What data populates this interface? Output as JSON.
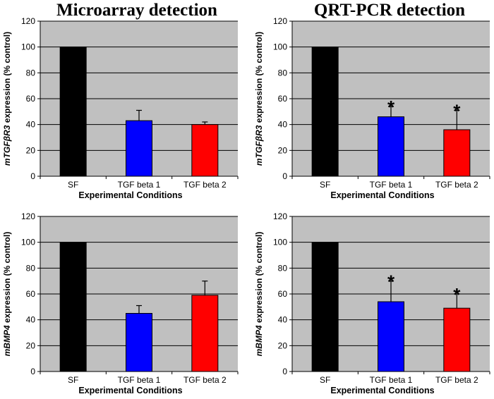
{
  "titles": [
    "Microarray detection",
    "QRT-PCR detection"
  ],
  "chart_data": [
    {
      "type": "bar",
      "categories": [
        "SF",
        "TGF beta 1",
        "TGF beta 2"
      ],
      "values": [
        100,
        43,
        40
      ],
      "errors": [
        0,
        8,
        2
      ],
      "significant": [
        false,
        false,
        false
      ],
      "colors": [
        "#000000",
        "#0000ff",
        "#ff0000"
      ],
      "xlabel": "Experimental Conditions",
      "ylabel_gene": "mTGFβR3",
      "ylabel_rest": " expression (% control)",
      "ylim": [
        0,
        120
      ],
      "yticks": [
        0,
        20,
        40,
        60,
        80,
        100,
        120
      ],
      "significance_marker": "*"
    },
    {
      "type": "bar",
      "categories": [
        "SF",
        "TGF beta 1",
        "TGF beta 2"
      ],
      "values": [
        100,
        46,
        36
      ],
      "errors": [
        0,
        8,
        15
      ],
      "significant": [
        false,
        true,
        true
      ],
      "colors": [
        "#000000",
        "#0000ff",
        "#ff0000"
      ],
      "xlabel": "Experimental Conditions",
      "ylabel_gene": "mTGFβR3",
      "ylabel_rest": " expression (% control)",
      "ylim": [
        0,
        120
      ],
      "yticks": [
        0,
        20,
        40,
        60,
        80,
        100,
        120
      ],
      "significance_marker": "*"
    },
    {
      "type": "bar",
      "categories": [
        "SF",
        "TGF beta 1",
        "TGF beta 2"
      ],
      "values": [
        100,
        45,
        59
      ],
      "errors": [
        0,
        6,
        11
      ],
      "significant": [
        false,
        false,
        false
      ],
      "colors": [
        "#000000",
        "#0000ff",
        "#ff0000"
      ],
      "xlabel": "Experimental Conditions",
      "ylabel_gene": "mBMP4",
      "ylabel_rest": " expression (% control)",
      "ylim": [
        0,
        120
      ],
      "yticks": [
        0,
        20,
        40,
        60,
        80,
        100,
        120
      ],
      "significance_marker": "*"
    },
    {
      "type": "bar",
      "categories": [
        "SF",
        "TGF beta 1",
        "TGF beta 2"
      ],
      "values": [
        100,
        54,
        49
      ],
      "errors": [
        0,
        16,
        11
      ],
      "significant": [
        false,
        true,
        true
      ],
      "colors": [
        "#000000",
        "#0000ff",
        "#ff0000"
      ],
      "xlabel": "Experimental Conditions",
      "ylabel_gene": "mBMP4",
      "ylabel_rest": " expression (% control)",
      "ylim": [
        0,
        120
      ],
      "yticks": [
        0,
        20,
        40,
        60,
        80,
        100,
        120
      ],
      "significance_marker": "*"
    }
  ]
}
